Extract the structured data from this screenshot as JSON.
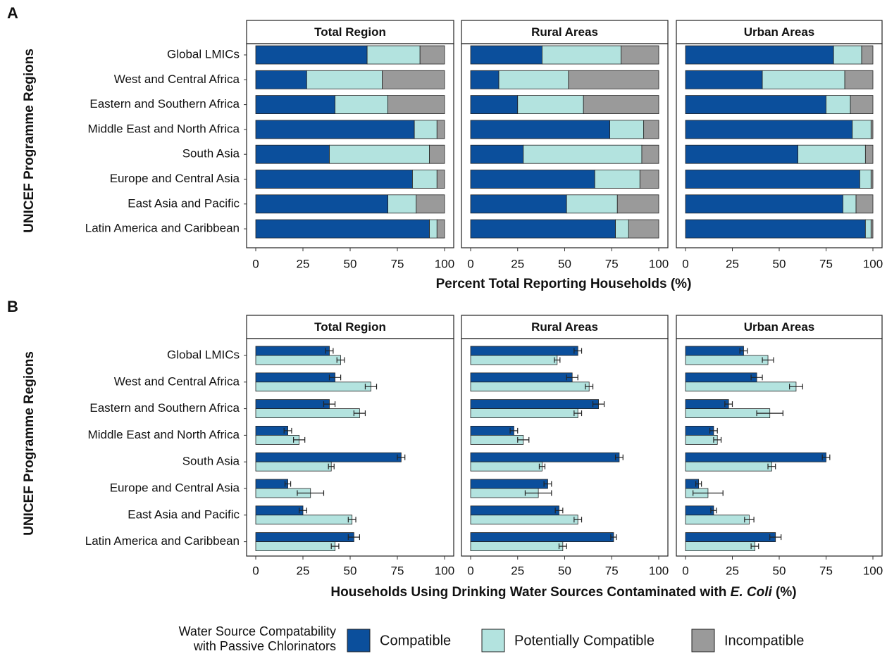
{
  "figure": {
    "legend": {
      "title": [
        "Water Source Compatability",
        "with Passive Chlorinators"
      ],
      "entries": [
        {
          "name": "Compatible",
          "color": "#0b4f9c"
        },
        {
          "name": "Potentially Compatible",
          "color": "#b3e3df"
        },
        {
          "name": "Incompatible",
          "color": "#9a9a9a"
        }
      ]
    }
  },
  "chart_data": [
    {
      "type": "stacked_bar",
      "label": "A",
      "ylabel": "UNICEF Programme Regions",
      "xlabel": "Percent Total Reporting Households (%)",
      "categories": [
        "Global LMICs",
        "West and Central Africa",
        "Eastern and Southern Africa",
        "Middle East and North Africa",
        "South Asia",
        "Europe and Central Asia",
        "East Asia and Pacific",
        "Latin America and Caribbean"
      ],
      "xlim": [
        0,
        100
      ],
      "xticks": [
        0,
        25,
        50,
        75,
        100
      ],
      "facets": [
        {
          "title": "Total Region",
          "series": [
            {
              "values": [
                59,
                27,
                42,
                84,
                39,
                83,
                70,
                92
              ]
            },
            {
              "values": [
                28,
                40,
                28,
                12,
                53,
                13,
                15,
                4
              ]
            },
            {
              "values": [
                13,
                33,
                30,
                4,
                8,
                4,
                15,
                4
              ]
            }
          ]
        },
        {
          "title": "Rural Areas",
          "series": [
            {
              "values": [
                38,
                15,
                25,
                74,
                28,
                66,
                51,
                77
              ]
            },
            {
              "values": [
                42,
                37,
                35,
                18,
                63,
                24,
                27,
                7
              ]
            },
            {
              "values": [
                20,
                48,
                40,
                8,
                9,
                10,
                22,
                16
              ]
            }
          ]
        },
        {
          "title": "Urban Areas",
          "series": [
            {
              "values": [
                79,
                41,
                75,
                89,
                60,
                93,
                84,
                96
              ]
            },
            {
              "values": [
                15,
                44,
                13,
                10,
                36,
                6,
                7,
                3
              ]
            },
            {
              "values": [
                6,
                15,
                12,
                1,
                4,
                1,
                9,
                1
              ]
            }
          ]
        }
      ]
    },
    {
      "type": "error_bar",
      "label": "B",
      "ylabel": "UNICEF Programme Regions",
      "xlabel": [
        "Households Using Drinking Water Sources Contaminated with ",
        "E. Coli",
        " (%)"
      ],
      "categories": [
        "Global LMICs",
        "West and Central Africa",
        "Eastern and Southern Africa",
        "Middle East and North Africa",
        "South Asia",
        "Europe and Central Asia",
        "East Asia and Pacific",
        "Latin America and Caribbean"
      ],
      "xlim": [
        0,
        100
      ],
      "xticks": [
        0,
        25,
        50,
        75,
        100
      ],
      "facets": [
        {
          "title": "Total Region",
          "series": [
            {
              "values": [
                39,
                42,
                39,
                17,
                77,
                17,
                25,
                52
              ],
              "errors": [
                2,
                3,
                3,
                2,
                2,
                1.5,
                2,
                3
              ]
            },
            {
              "values": [
                45,
                61,
                55,
                23,
                40,
                29,
                51,
                42
              ],
              "errors": [
                2,
                3,
                3,
                3,
                1.5,
                7,
                2,
                2
              ]
            }
          ]
        },
        {
          "title": "Rural Areas",
          "series": [
            {
              "values": [
                57,
                54,
                68,
                23,
                79,
                41,
                47,
                76
              ],
              "errors": [
                2,
                3,
                3,
                2,
                2,
                2,
                2,
                1.5
              ]
            },
            {
              "values": [
                46,
                63,
                57,
                28,
                38,
                36,
                57,
                49
              ],
              "errors": [
                1.5,
                2,
                2,
                3,
                1.5,
                7,
                2,
                2
              ]
            }
          ]
        },
        {
          "title": "Urban Areas",
          "series": [
            {
              "values": [
                31,
                38,
                23,
                15,
                75,
                7,
                15,
                48
              ],
              "errors": [
                2,
                3,
                2,
                2,
                2,
                1.5,
                1.5,
                3
              ]
            },
            {
              "values": [
                44,
                59,
                45,
                17,
                46,
                12,
                34,
                37
              ],
              "errors": [
                3,
                3.5,
                7,
                2,
                2,
                8,
                2.5,
                2
              ]
            }
          ]
        }
      ]
    }
  ]
}
